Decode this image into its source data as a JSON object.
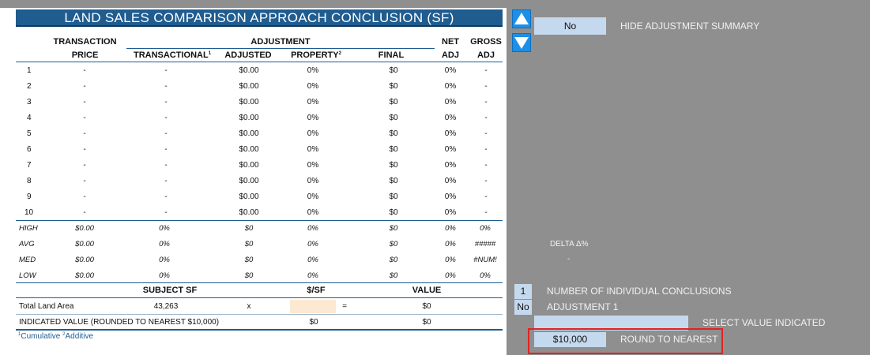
{
  "title": "LAND SALES COMPARISON APPROACH CONCLUSION (SF)",
  "headers": {
    "transaction": "TRANSACTION",
    "price": "PRICE",
    "adjustment": "ADJUSTMENT",
    "transactional": "TRANSACTIONAL",
    "transactional_sup": "1",
    "adjusted": "ADJUSTED",
    "property": "PROPERTY",
    "property_sup": "2",
    "final": "FINAL",
    "net": "NET",
    "net_adj": "ADJ",
    "gross": "GROSS",
    "gross_adj": "ADJ"
  },
  "rows": [
    {
      "n": "1",
      "price": "-",
      "trans": "-",
      "adjusted": "$0.00",
      "property": "0%",
      "final": "$0",
      "net": "0%",
      "gross": "-"
    },
    {
      "n": "2",
      "price": "-",
      "trans": "-",
      "adjusted": "$0.00",
      "property": "0%",
      "final": "$0",
      "net": "0%",
      "gross": "-"
    },
    {
      "n": "3",
      "price": "-",
      "trans": "-",
      "adjusted": "$0.00",
      "property": "0%",
      "final": "$0",
      "net": "0%",
      "gross": "-"
    },
    {
      "n": "4",
      "price": "-",
      "trans": "-",
      "adjusted": "$0.00",
      "property": "0%",
      "final": "$0",
      "net": "0%",
      "gross": "-"
    },
    {
      "n": "5",
      "price": "-",
      "trans": "-",
      "adjusted": "$0.00",
      "property": "0%",
      "final": "$0",
      "net": "0%",
      "gross": "-"
    },
    {
      "n": "6",
      "price": "-",
      "trans": "-",
      "adjusted": "$0.00",
      "property": "0%",
      "final": "$0",
      "net": "0%",
      "gross": "-"
    },
    {
      "n": "7",
      "price": "-",
      "trans": "-",
      "adjusted": "$0.00",
      "property": "0%",
      "final": "$0",
      "net": "0%",
      "gross": "-"
    },
    {
      "n": "8",
      "price": "-",
      "trans": "-",
      "adjusted": "$0.00",
      "property": "0%",
      "final": "$0",
      "net": "0%",
      "gross": "-"
    },
    {
      "n": "9",
      "price": "-",
      "trans": "-",
      "adjusted": "$0.00",
      "property": "0%",
      "final": "$0",
      "net": "0%",
      "gross": "-"
    },
    {
      "n": "10",
      "price": "-",
      "trans": "-",
      "adjusted": "$0.00",
      "property": "0%",
      "final": "$0",
      "net": "0%",
      "gross": "-"
    }
  ],
  "stats": [
    {
      "label": "HIGH",
      "price": "$0.00",
      "trans": "0%",
      "adjusted": "$0",
      "property": "0%",
      "final": "$0",
      "net": "0%",
      "gross": "0%"
    },
    {
      "label": "AVG",
      "price": "$0.00",
      "trans": "0%",
      "adjusted": "$0",
      "property": "0%",
      "final": "$0",
      "net": "0%",
      "gross": "#####"
    },
    {
      "label": "MED",
      "price": "$0.00",
      "trans": "0%",
      "adjusted": "$0",
      "property": "0%",
      "final": "$0",
      "net": "0%",
      "gross": "#NUM!"
    },
    {
      "label": "LOW",
      "price": "$0.00",
      "trans": "0%",
      "adjusted": "$0",
      "property": "0%",
      "final": "$0",
      "net": "0%",
      "gross": "0%"
    }
  ],
  "summary": {
    "subject_sf_header": "SUBJECT SF",
    "per_sf_header": "$/SF",
    "value_header": "VALUE",
    "total_land_area_label": "Total Land Area",
    "total_land_area_value": "43,263",
    "times": "x",
    "equals": "=",
    "total_value": "$0",
    "indicated_label": "INDICATED VALUE (ROUNDED TO NEAREST $10,000)",
    "indicated_per_sf": "$0",
    "indicated_value": "$0"
  },
  "footnote": {
    "sup1": "1",
    "text1": "Cumulative ",
    "sup2": "2",
    "text2": "Additive"
  },
  "panel": {
    "hide_value": "No",
    "hide_label": "HIDE ADJUSTMENT SUMMARY",
    "delta_label": "DELTA Δ%",
    "delta_value": "-",
    "num_conclusions_value": "1",
    "num_conclusions_label": "NUMBER OF INDIVIDUAL CONCLUSIONS",
    "adj1_value": "No",
    "adj1_label": "ADJUSTMENT 1",
    "select_value": "",
    "select_label": "SELECT VALUE INDICATED",
    "round_value": "$10,000",
    "round_label": "ROUND TO NEAREST"
  },
  "icons": {
    "up": "arrow-up-icon",
    "down": "arrow-down-icon"
  },
  "colors": {
    "title_bg": "#1f5c8f",
    "arrow_bg": "#1e8fe6",
    "input_cell": "#c5d9ee",
    "highlight_border": "#e02424",
    "background": "#8f8f8f"
  }
}
